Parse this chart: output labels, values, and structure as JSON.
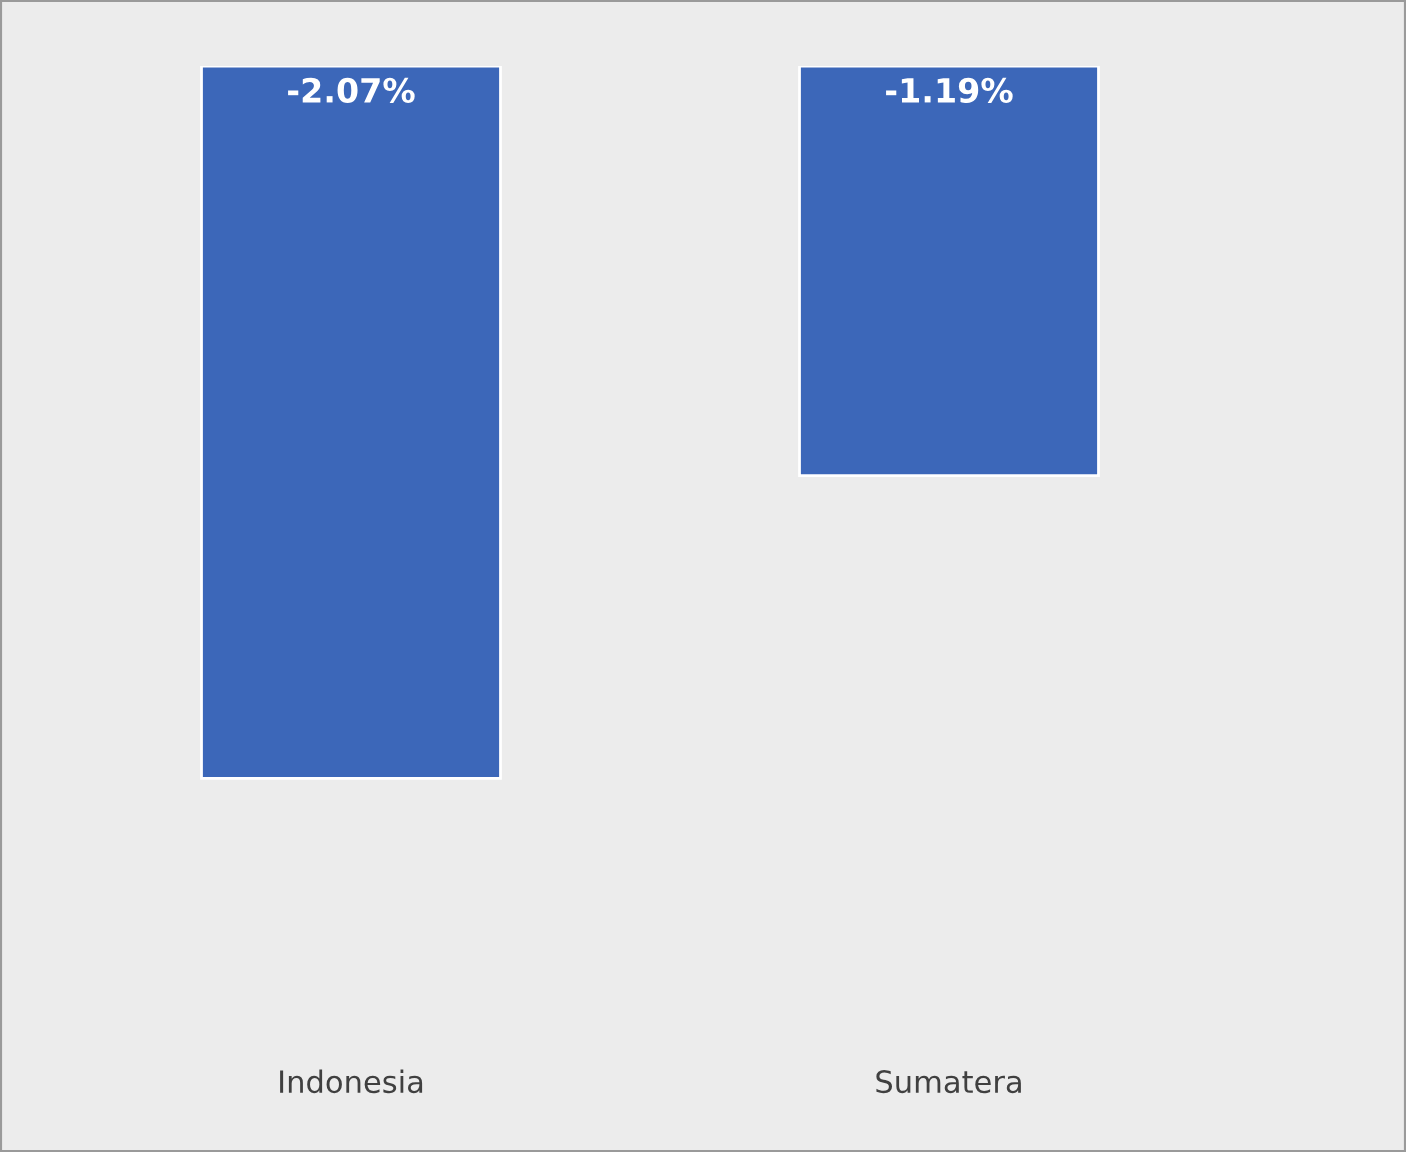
{
  "chart_data": {
    "type": "bar",
    "categories": [
      "Indonesia",
      "Sumatera"
    ],
    "values": [
      -2.07,
      -1.19
    ],
    "value_labels": [
      "-2.07%",
      "-1.19%"
    ],
    "color": "#3c67b9",
    "grid": false,
    "legend": false
  }
}
